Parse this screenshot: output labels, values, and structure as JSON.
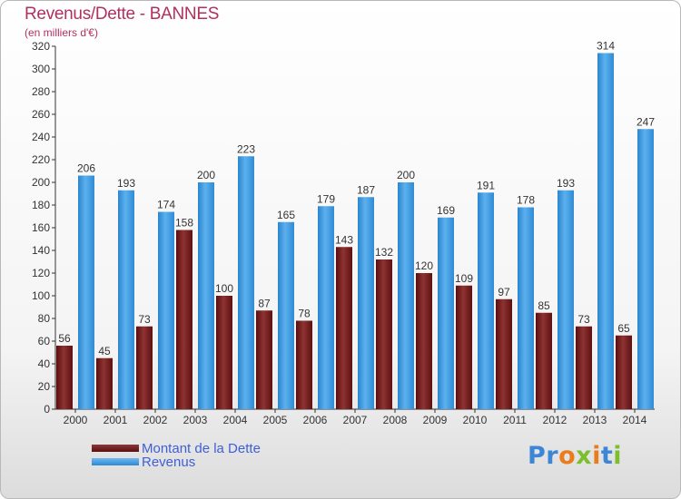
{
  "chart_data": {
    "type": "bar",
    "title": "Revenus/Dette - BANNES",
    "subtitle": "(en milliers d'€)",
    "categories": [
      "2000",
      "2001",
      "2002",
      "2003",
      "2004",
      "2005",
      "2006",
      "2007",
      "2008",
      "2009",
      "2010",
      "2011",
      "2012",
      "2013",
      "2014"
    ],
    "series": [
      {
        "name": "Montant de la Dette",
        "color": "#7a1c1c",
        "values": [
          56,
          45,
          73,
          158,
          100,
          87,
          78,
          143,
          132,
          120,
          109,
          97,
          85,
          73,
          65
        ]
      },
      {
        "name": "Revenus",
        "color": "#3a9be6",
        "values": [
          206,
          193,
          174,
          200,
          223,
          165,
          179,
          187,
          200,
          169,
          191,
          178,
          193,
          314,
          247
        ]
      }
    ],
    "ylim": [
      0,
      320
    ],
    "yticks": [
      0,
      20,
      40,
      60,
      80,
      100,
      120,
      140,
      160,
      180,
      200,
      220,
      240,
      260,
      280,
      300,
      320
    ],
    "grid": false,
    "legend_position": "bottom-left"
  },
  "legend": {
    "items": [
      {
        "label": "Montant de la Dette"
      },
      {
        "label": "Revenus"
      }
    ]
  },
  "logo": {
    "text": "Proxiti"
  }
}
